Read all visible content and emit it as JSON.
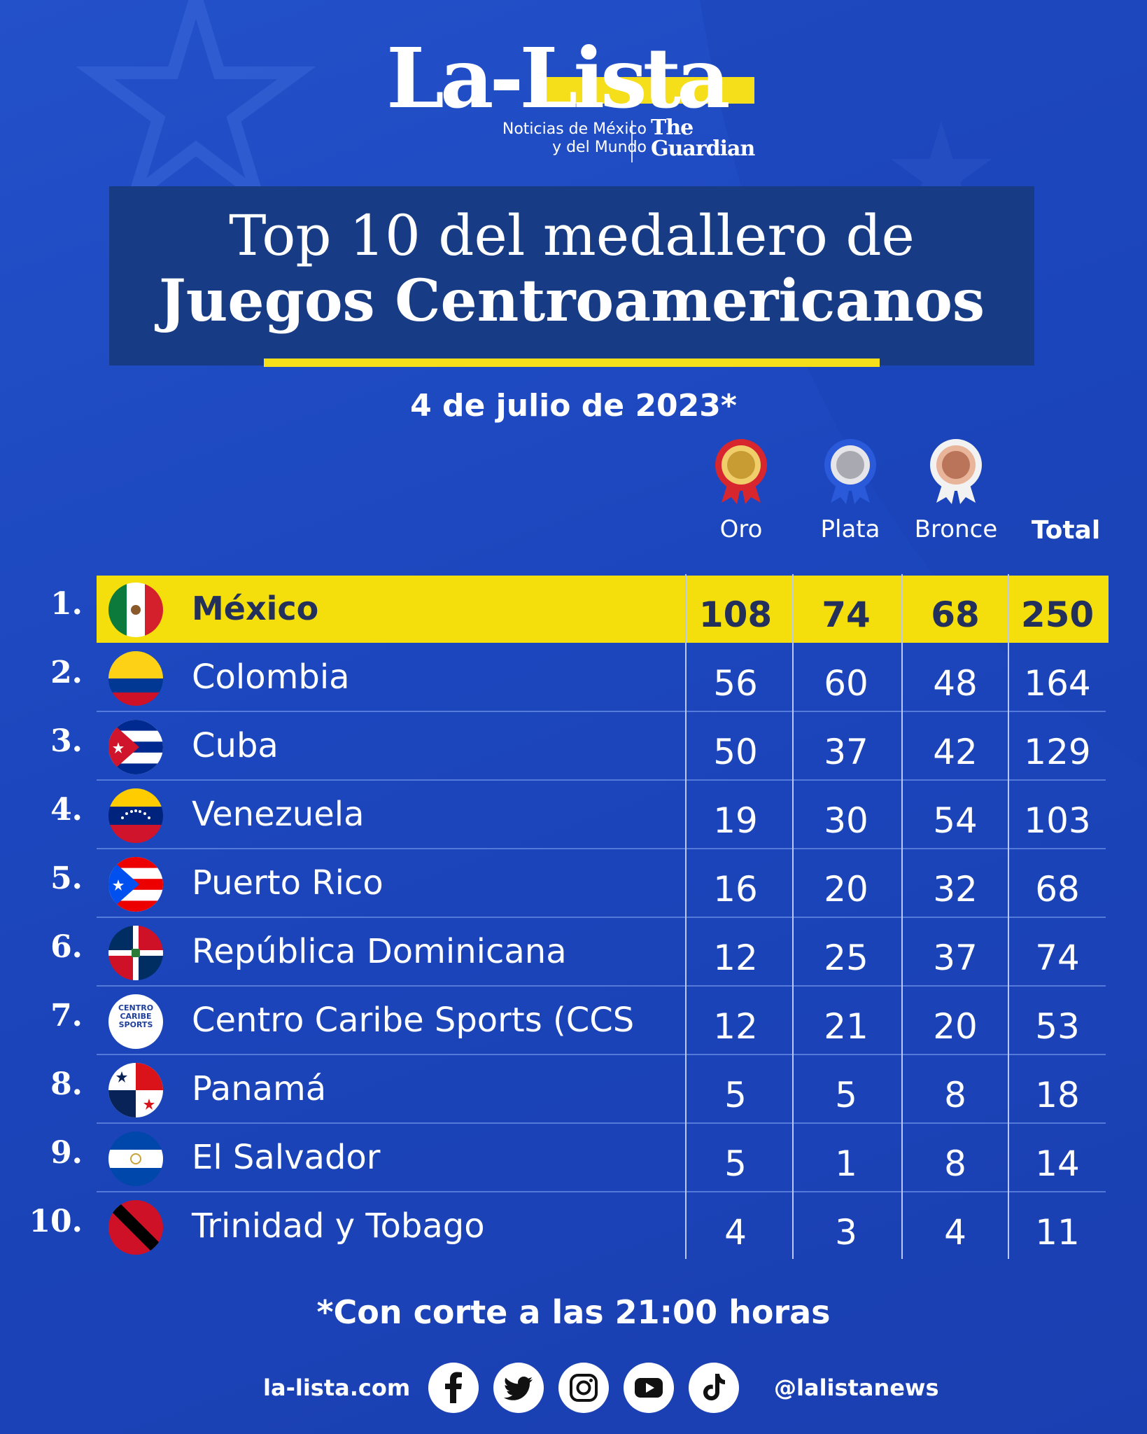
{
  "brand": {
    "logo_text": "La-Lista",
    "tagline_line1": "Noticias de México",
    "tagline_line2": "y del Mundo",
    "partner_line1": "The",
    "partner_line2": "Guardian",
    "accent_color": "#f5df1a"
  },
  "title": {
    "line1": "Top 10 del medallero de",
    "line2": "Juegos Centroamericanos"
  },
  "date": "4 de julio de 2023*",
  "columns": {
    "gold": "Oro",
    "silver": "Plata",
    "bronze": "Bronce",
    "total": "Total",
    "gold_icon": "gold-medal-icon",
    "silver_icon": "silver-medal-icon",
    "bronze_icon": "bronze-medal-icon"
  },
  "rows": [
    {
      "rank": "1.",
      "country": "México",
      "flag": "mexico-flag-icon",
      "gold": "108",
      "silver": "74",
      "bronze": "68",
      "total": "250",
      "highlight": true
    },
    {
      "rank": "2.",
      "country": "Colombia",
      "flag": "colombia-flag-icon",
      "gold": "56",
      "silver": "60",
      "bronze": "48",
      "total": "164"
    },
    {
      "rank": "3.",
      "country": "Cuba",
      "flag": "cuba-flag-icon",
      "gold": "50",
      "silver": "37",
      "bronze": "42",
      "total": "129"
    },
    {
      "rank": "4.",
      "country": "Venezuela",
      "flag": "venezuela-flag-icon",
      "gold": "19",
      "silver": "30",
      "bronze": "54",
      "total": "103"
    },
    {
      "rank": "5.",
      "country": "Puerto Rico",
      "flag": "puerto-rico-flag-icon",
      "gold": "16",
      "silver": "20",
      "bronze": "32",
      "total": "68"
    },
    {
      "rank": "6.",
      "country": "República Dominicana",
      "flag": "dominican-republic-flag-icon",
      "gold": "12",
      "silver": "25",
      "bronze": "37",
      "total": "74"
    },
    {
      "rank": "7.",
      "country": "Centro Caribe Sports (CCS",
      "flag": "centro-caribe-sports-logo-icon",
      "flag_text": "CENTRO CARIBE SPORTS",
      "gold": "12",
      "silver": "21",
      "bronze": "20",
      "total": "53"
    },
    {
      "rank": "8.",
      "country": "Panamá",
      "flag": "panama-flag-icon",
      "gold": "5",
      "silver": "5",
      "bronze": "8",
      "total": "18"
    },
    {
      "rank": "9.",
      "country": "El Salvador",
      "flag": "el-salvador-flag-icon",
      "gold": "5",
      "silver": "1",
      "bronze": "8",
      "total": "14"
    },
    {
      "rank": "10.",
      "country": "Trinidad y Tobago",
      "flag": "trinidad-and-tobago-flag-icon",
      "gold": "4",
      "silver": "3",
      "bronze": "4",
      "total": "11"
    }
  ],
  "footnote": "*Con corte a las 21:00 horas",
  "footer": {
    "site": "la-lista.com",
    "handle": "@lalistanews",
    "social_icons": [
      "facebook-icon",
      "twitter-icon",
      "instagram-icon",
      "youtube-icon",
      "tiktok-icon"
    ]
  }
}
